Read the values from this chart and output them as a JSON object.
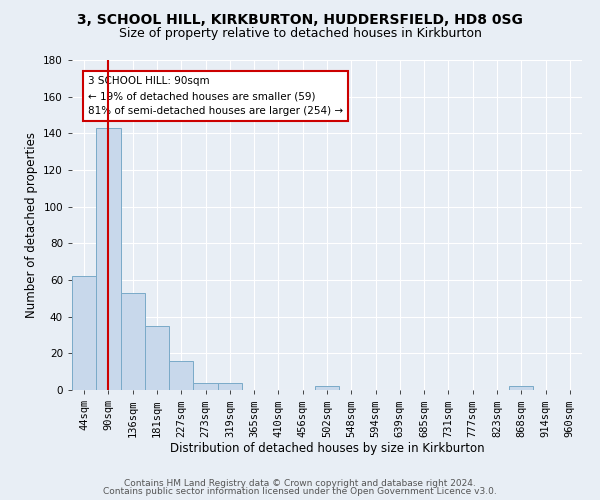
{
  "title1": "3, SCHOOL HILL, KIRKBURTON, HUDDERSFIELD, HD8 0SG",
  "title2": "Size of property relative to detached houses in Kirkburton",
  "xlabel": "Distribution of detached houses by size in Kirkburton",
  "ylabel": "Number of detached properties",
  "footnote1": "Contains HM Land Registry data © Crown copyright and database right 2024.",
  "footnote2": "Contains public sector information licensed under the Open Government Licence v3.0.",
  "bin_labels": [
    "44sqm",
    "90sqm",
    "136sqm",
    "181sqm",
    "227sqm",
    "273sqm",
    "319sqm",
    "365sqm",
    "410sqm",
    "456sqm",
    "502sqm",
    "548sqm",
    "594sqm",
    "639sqm",
    "685sqm",
    "731sqm",
    "777sqm",
    "823sqm",
    "868sqm",
    "914sqm",
    "960sqm"
  ],
  "bar_heights": [
    62,
    143,
    53,
    35,
    16,
    4,
    4,
    0,
    0,
    0,
    2,
    0,
    0,
    0,
    0,
    0,
    0,
    0,
    2,
    0,
    0
  ],
  "bar_color": "#c8d8eb",
  "bar_edge_color": "#7aaac8",
  "red_line_bin": 1,
  "red_line_color": "#cc0000",
  "annotation_text": "3 SCHOOL HILL: 90sqm\n← 19% of detached houses are smaller (59)\n81% of semi-detached houses are larger (254) →",
  "annotation_box_color": "#ffffff",
  "annotation_box_edge": "#cc0000",
  "ylim": [
    0,
    180
  ],
  "yticks": [
    0,
    20,
    40,
    60,
    80,
    100,
    120,
    140,
    160,
    180
  ],
  "bg_color": "#e8eef5",
  "plot_bg_color": "#e8eef5",
  "grid_color": "#ffffff",
  "title1_fontsize": 10,
  "title2_fontsize": 9,
  "xlabel_fontsize": 8.5,
  "ylabel_fontsize": 8.5,
  "tick_fontsize": 7.5,
  "footnote_fontsize": 6.5
}
